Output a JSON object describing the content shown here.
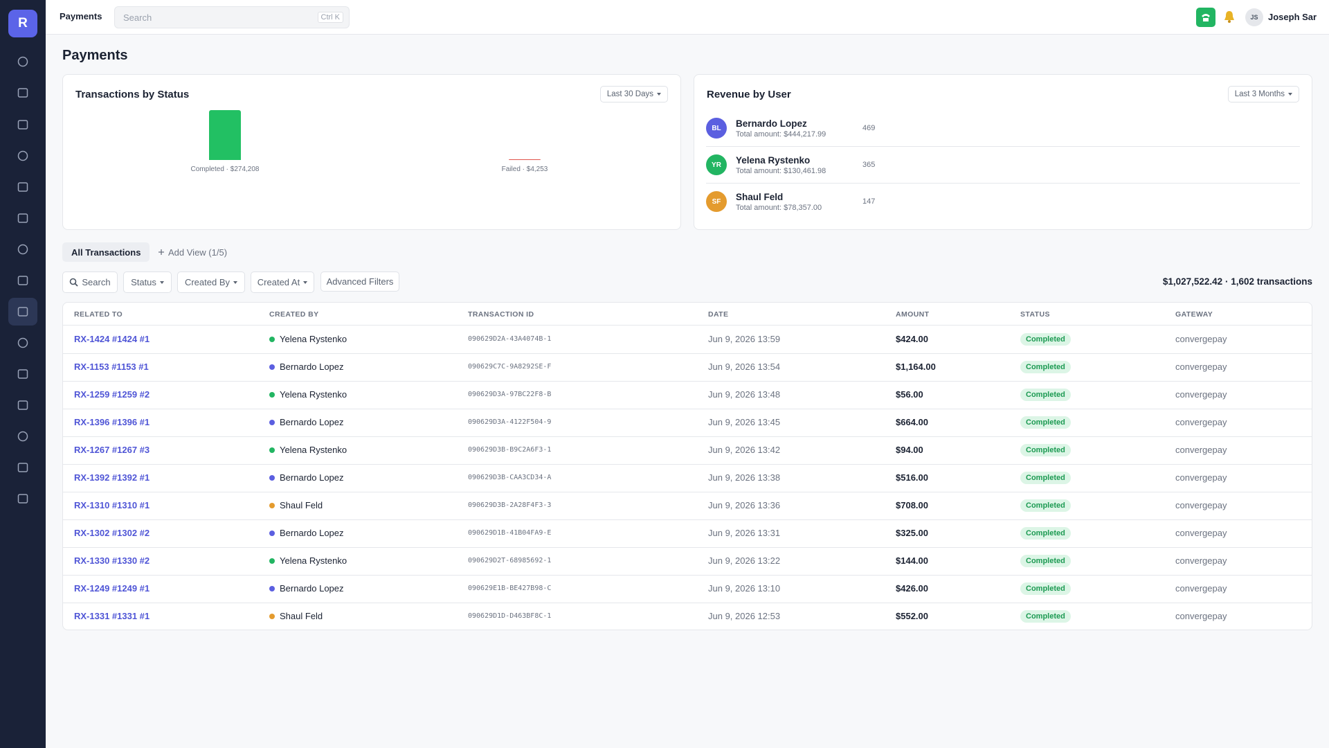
{
  "sidebar": {
    "logo": "R"
  },
  "topbar": {
    "title": "Payments",
    "search_placeholder": "Search",
    "search_shortcut": "Ctrl K",
    "user_initials": "JS",
    "user_name": "Joseph Sar"
  },
  "page_title": "Payments",
  "transactions_by_status": {
    "title": "Transactions by Status",
    "range": "Last 30 Days",
    "bars": [
      {
        "label": "Completed · $274,208",
        "value": 274208,
        "color": "#22c063"
      },
      {
        "label": "Failed · $4,253",
        "value": 4253,
        "color": "#e0534a"
      }
    ]
  },
  "revenue_by_user": {
    "title": "Revenue by User",
    "range": "Last 3 Months",
    "users": [
      {
        "initials": "BL",
        "name": "Bernardo Lopez",
        "total": "Total amount: $444,217.99",
        "count": 469,
        "color": "#5b5fe0"
      },
      {
        "initials": "YR",
        "name": "Yelena Rystenko",
        "total": "Total amount: $130,461.98",
        "count": 365,
        "color": "#22b562"
      },
      {
        "initials": "SF",
        "name": "Shaul Feld",
        "total": "Total amount: $78,357.00",
        "count": 147,
        "color": "#e49b2e"
      }
    ]
  },
  "tabs": {
    "active": "All Transactions",
    "add_view": "Add View (1/5)"
  },
  "filters": {
    "search": "Search",
    "status": "Status",
    "created_by": "Created By",
    "created_at": "Created At",
    "advanced": "Advanced Filters",
    "summary": "$1,027,522.42 · 1,602 transactions"
  },
  "table": {
    "columns": [
      "RELATED TO",
      "CREATED BY",
      "TRANSACTION ID",
      "DATE",
      "AMOUNT",
      "STATUS",
      "GATEWAY"
    ],
    "rows": [
      [
        "RX-1424 #1424 #1",
        "Yelena Rystenko",
        "090629D2A-43A4074B-1",
        "Jun 9, 2026 13:59",
        "$424.00",
        "Completed",
        "convergepay"
      ],
      [
        "RX-1153 #1153 #1",
        "Bernardo Lopez",
        "090629C7C-9A8292SE-F",
        "Jun 9, 2026 13:54",
        "$1,164.00",
        "Completed",
        "convergepay"
      ],
      [
        "RX-1259 #1259 #2",
        "Yelena Rystenko",
        "090629D3A-97BC22F8-B",
        "Jun 9, 2026 13:48",
        "$56.00",
        "Completed",
        "convergepay"
      ],
      [
        "RX-1396 #1396 #1",
        "Bernardo Lopez",
        "090629D3A-4122F504-9",
        "Jun 9, 2026 13:45",
        "$664.00",
        "Completed",
        "convergepay"
      ],
      [
        "RX-1267 #1267 #3",
        "Yelena Rystenko",
        "090629D3B-B9C2A6F3-1",
        "Jun 9, 2026 13:42",
        "$94.00",
        "Completed",
        "convergepay"
      ],
      [
        "RX-1392 #1392 #1",
        "Bernardo Lopez",
        "090629D3B-CAA3CD34-A",
        "Jun 9, 2026 13:38",
        "$516.00",
        "Completed",
        "convergepay"
      ],
      [
        "RX-1310 #1310 #1",
        "Shaul Feld",
        "090629D3B-2A28F4F3-3",
        "Jun 9, 2026 13:36",
        "$708.00",
        "Completed",
        "convergepay"
      ],
      [
        "RX-1302 #1302 #2",
        "Bernardo Lopez",
        "090629D1B-41B04FA9-E",
        "Jun 9, 2026 13:31",
        "$325.00",
        "Completed",
        "convergepay"
      ],
      [
        "RX-1330 #1330 #2",
        "Yelena Rystenko",
        "090629D2T-68985692-1",
        "Jun 9, 2026 13:22",
        "$144.00",
        "Completed",
        "convergepay"
      ],
      [
        "RX-1249 #1249 #1",
        "Bernardo Lopez",
        "090629E1B-BE427B98-C",
        "Jun 9, 2026 13:10",
        "$426.00",
        "Completed",
        "convergepay"
      ],
      [
        "RX-1331 #1331 #1",
        "Shaul Feld",
        "090629D1D-D463BF8C-1",
        "Jun 9, 2026 12:53",
        "$552.00",
        "Completed",
        "convergepay"
      ]
    ]
  }
}
